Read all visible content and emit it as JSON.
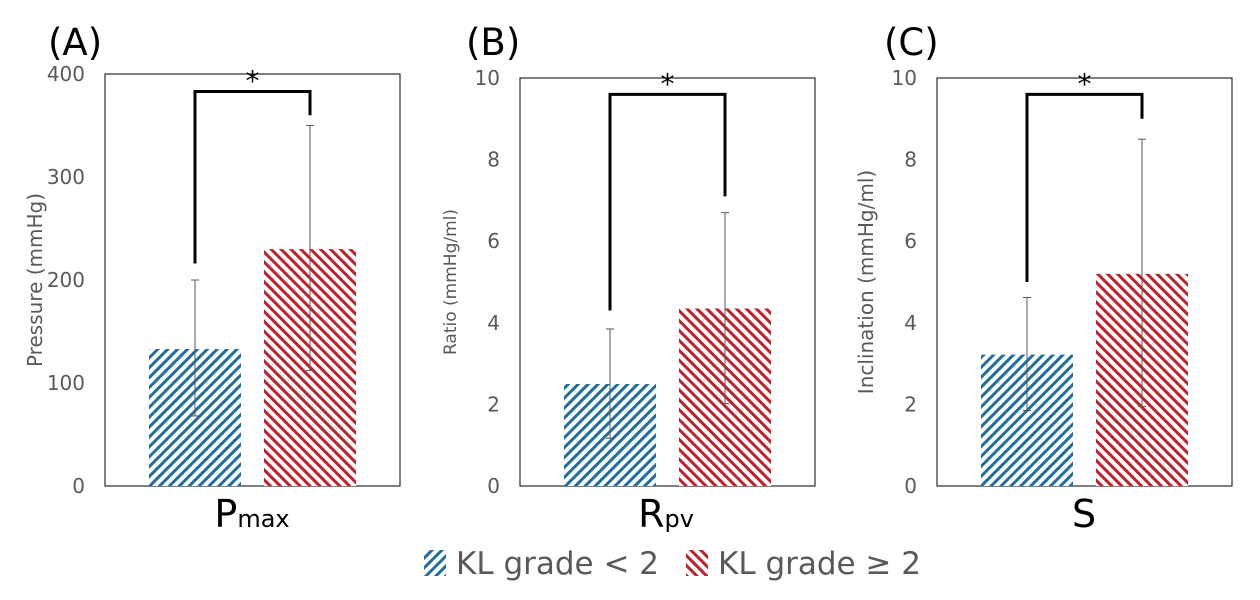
{
  "colors": {
    "group1": "#1f6e9e",
    "group2": "#c0202a",
    "axis_text": "#595959",
    "error_bar": "#595959",
    "bracket": "#000000",
    "frame": "#000000"
  },
  "legend": {
    "items": [
      {
        "label": "KL grade < 2",
        "color": "#1f6e9e"
      },
      {
        "label": "KL grade ≥ 2",
        "color": "#c0202a"
      }
    ]
  },
  "chart_data": [
    {
      "panel_label": "(A)",
      "type": "bar",
      "category_main": "P",
      "category_sub": "max",
      "ylabel": "Pressure (mmHg)",
      "ylim": [
        0,
        400
      ],
      "yticks": [
        0,
        100,
        200,
        300,
        400
      ],
      "series": [
        {
          "name": "KL grade < 2",
          "value": 133,
          "error_low": 68,
          "error_high": 200
        },
        {
          "name": "KL grade ≥ 2",
          "value": 230,
          "error_low": 112,
          "error_high": 350
        }
      ],
      "significance": {
        "label": "*",
        "bracket_top": 383,
        "left_start": 216,
        "right_start": 360
      }
    },
    {
      "panel_label": "(B)",
      "type": "bar",
      "category_main": "R",
      "category_sub": "pv",
      "ylabel": "Ratio (mmHg/ml)",
      "ylim": [
        0,
        10
      ],
      "yticks": [
        0,
        2,
        4,
        6,
        8,
        10
      ],
      "series": [
        {
          "name": "KL grade < 2",
          "value": 2.5,
          "error_low": 1.17,
          "error_high": 3.85
        },
        {
          "name": "KL grade ≥ 2",
          "value": 4.35,
          "error_low": 2.02,
          "error_high": 6.7
        },
        {
          "name": "",
          "value": null
        }
      ],
      "significance": {
        "label": "*",
        "bracket_top": 9.6,
        "left_start": 4.3,
        "right_start": 7.1
      }
    },
    {
      "panel_label": "(C)",
      "type": "bar",
      "category_main": "S",
      "category_sub": "",
      "ylabel": "Inclination (mmHg/ml)",
      "ylim": [
        0,
        10
      ],
      "yticks": [
        0,
        2,
        4,
        6,
        8,
        10
      ],
      "series": [
        {
          "name": "KL grade < 2",
          "value": 3.22,
          "error_low": 1.85,
          "error_high": 4.62
        },
        {
          "name": "KL grade ≥ 2",
          "value": 5.2,
          "error_low": 1.95,
          "error_high": 8.5
        }
      ],
      "significance": {
        "label": "*",
        "bracket_top": 9.6,
        "left_start": 5.0,
        "right_start": 9.0
      }
    }
  ]
}
